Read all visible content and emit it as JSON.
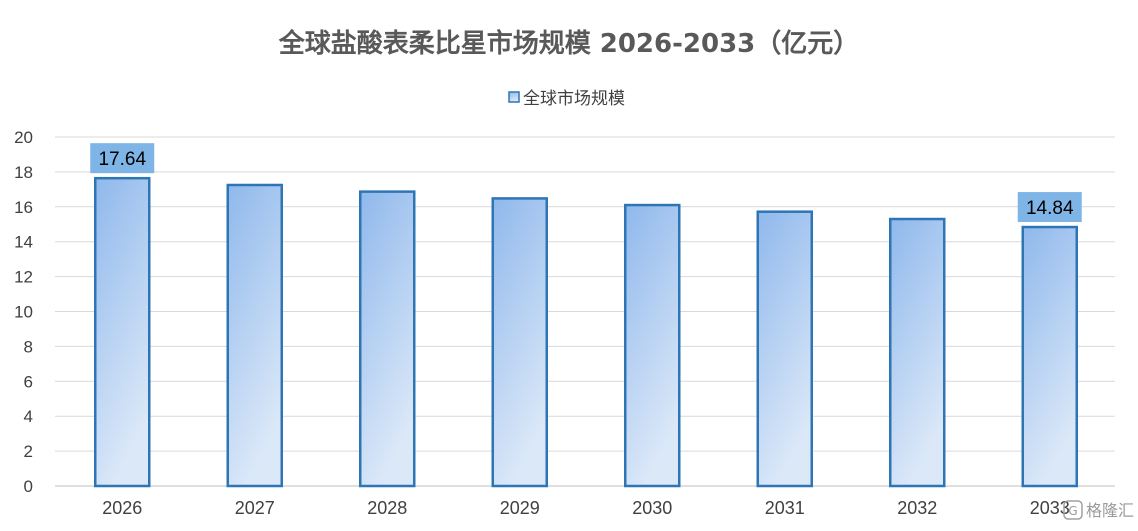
{
  "chart_data": {
    "type": "bar",
    "title": "全球盐酸表柔比星市场规模 2026-2033（亿元）",
    "categories": [
      "2026",
      "2027",
      "2028",
      "2029",
      "2030",
      "2031",
      "2032",
      "2033"
    ],
    "series": [
      {
        "name": "全球市场规模",
        "values": [
          17.64,
          17.25,
          16.87,
          16.48,
          16.1,
          15.72,
          15.3,
          14.84
        ]
      }
    ],
    "data_labels": [
      {
        "index": 0,
        "text": "17.64"
      },
      {
        "index": 7,
        "text": "14.84"
      }
    ],
    "ylim": [
      0,
      20
    ],
    "yticks": [
      "0",
      "2",
      "4",
      "6",
      "8",
      "10",
      "12",
      "14",
      "16",
      "18",
      "20"
    ],
    "xlabel": "",
    "ylabel": "",
    "grid": true,
    "legend_position": "top-center",
    "colors": {
      "bar_fill_top": "#8fb8ec",
      "bar_fill_bottom": "#dbe8f8",
      "bar_stroke": "#2e75b6",
      "label_bg": "#7fb5e6",
      "grid": "#d9d9d9",
      "title": "#595959"
    }
  },
  "watermark": {
    "icon": "gelonghui-logo-icon",
    "text": "格隆汇"
  }
}
